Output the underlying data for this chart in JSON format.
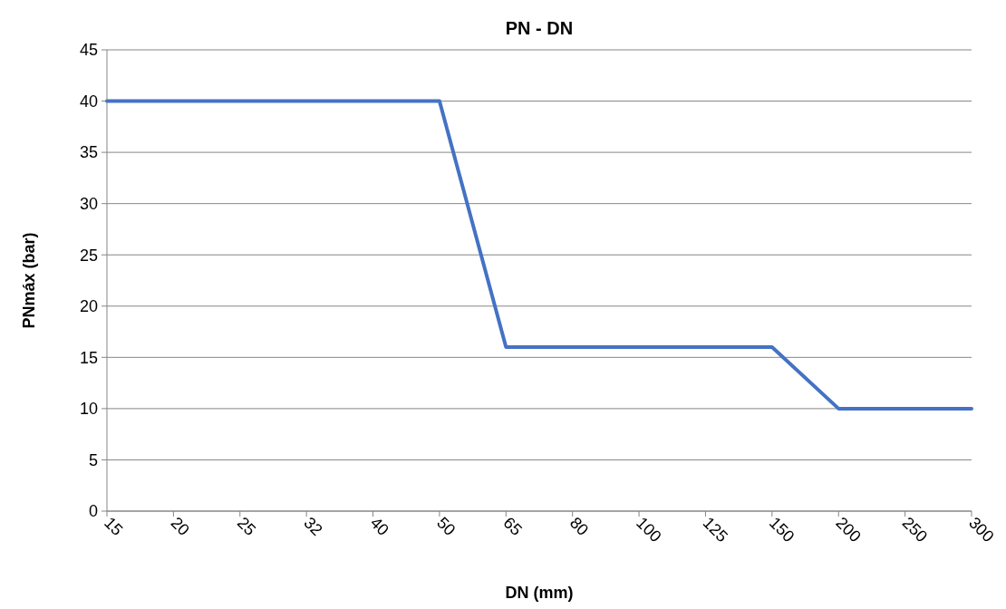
{
  "chart_data": {
    "type": "line",
    "title": "PN - DN",
    "xlabel": "DN (mm)",
    "ylabel": "PNmáx (bar)",
    "categories": [
      "15",
      "20",
      "25",
      "32",
      "40",
      "50",
      "65",
      "80",
      "100",
      "125",
      "150",
      "200",
      "250",
      "300"
    ],
    "series": [
      {
        "color": "#4472c4",
        "values": [
          40,
          40,
          40,
          40,
          40,
          40,
          16,
          16,
          16,
          16,
          16,
          10,
          10,
          10
        ]
      }
    ],
    "ylim": [
      0,
      45
    ],
    "yticks": [
      0,
      5,
      10,
      15,
      20,
      25,
      30,
      35,
      40,
      45
    ],
    "grid": "y",
    "marker": "none",
    "line_style": "solid"
  }
}
